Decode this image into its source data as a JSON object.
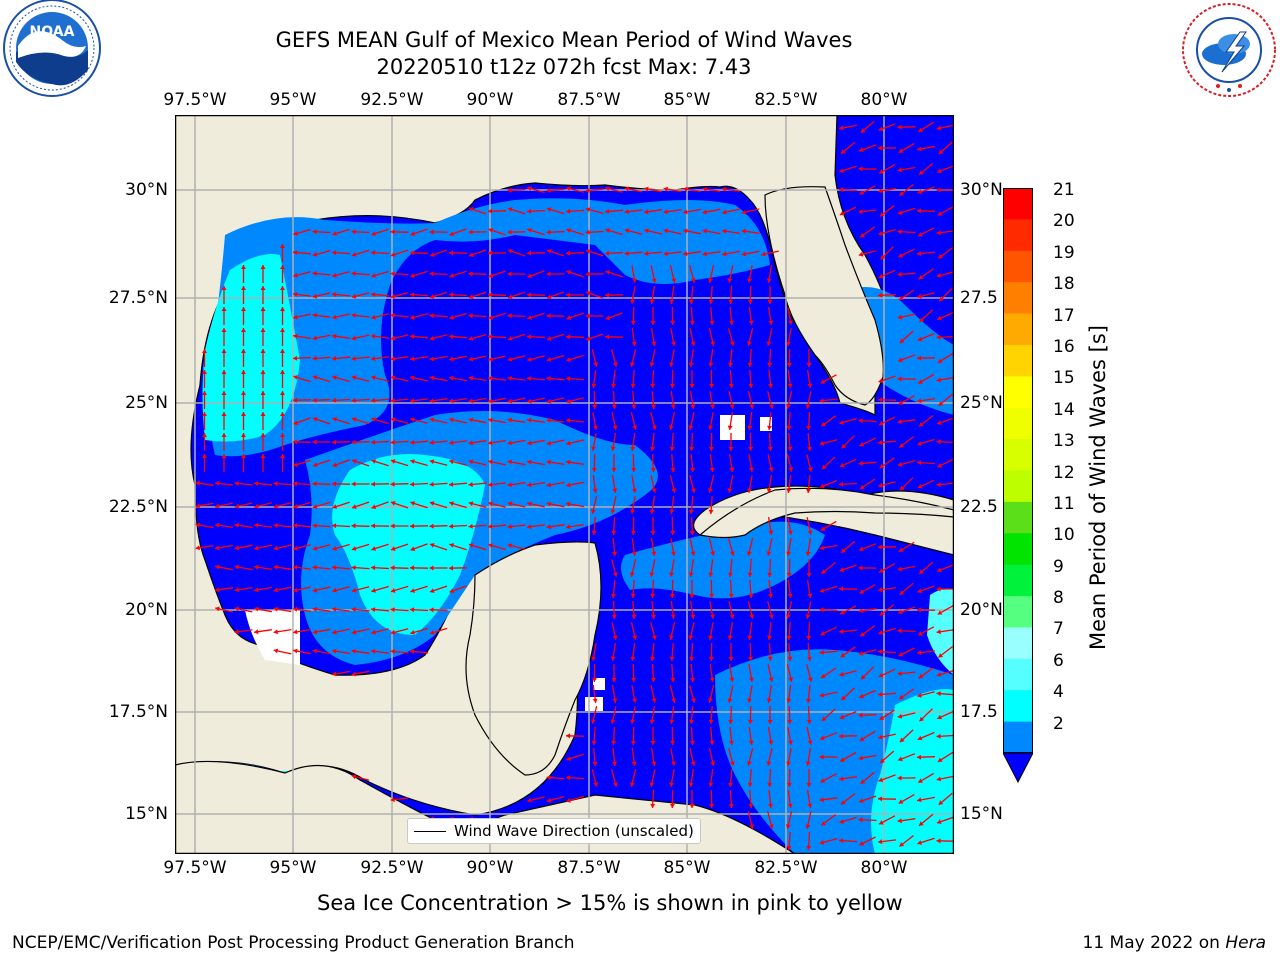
{
  "header": {
    "title_line1": "GEFS MEAN Gulf of Mexico Mean Period of Wind Waves",
    "title_line2": "20220510 t12z 072h fcst   Max: 7.43"
  },
  "logos": {
    "left": {
      "name": "NOAA",
      "ring_text": "NATIONAL OCEANIC AND ATMOSPHERIC ADMINISTRATION · U.S. DEPARTMENT OF COMMERCE",
      "color": "#1a4fa8"
    },
    "right": {
      "name": "NATIONAL WEATHER SERVICE",
      "color": "#d91f26"
    }
  },
  "map": {
    "lon_labels": [
      "97.5°W",
      "95°W",
      "92.5°W",
      "90°W",
      "87.5°W",
      "85°W",
      "82.5°W",
      "80°W"
    ],
    "lat_labels_left": [
      "30°N",
      "27.5°N",
      "25°N",
      "22.5°N",
      "20°N",
      "17.5°N",
      "15°N"
    ],
    "lat_labels_right": [
      "30°N",
      "27.5",
      "25°N",
      "22.5",
      "20°N",
      "17.5",
      "15°N"
    ],
    "land_color": "#efecdc",
    "arrow_color": "#ff0000",
    "legend_label": "Wind Wave Direction (unscaled)"
  },
  "colorbar": {
    "label": "Mean Period of Wind Waves [s]",
    "ticks": [
      "21",
      "20",
      "19",
      "18",
      "17",
      "16",
      "15",
      "14",
      "13",
      "12",
      "11",
      "10",
      "9",
      "8",
      "7",
      "6",
      "4",
      "2"
    ],
    "colors": [
      "#ff0000",
      "#ff2a00",
      "#ff5500",
      "#ff8000",
      "#ffaa00",
      "#ffd400",
      "#ffff00",
      "#f0ff00",
      "#d7ff00",
      "#beff00",
      "#5bdf19",
      "#00e400",
      "#00f23a",
      "#55ff80",
      "#99ffff",
      "#55ffff",
      "#00ffff",
      "#0088ff"
    ],
    "extend_color": "#0000ff"
  },
  "caption": "Sea Ice Concentration > 15% is shown in pink to yellow",
  "footer": {
    "left": "NCEP/EMC/Verification Post Processing Product Generation Branch",
    "right_date": "11 May 2022 on",
    "right_machine": "Hera"
  }
}
